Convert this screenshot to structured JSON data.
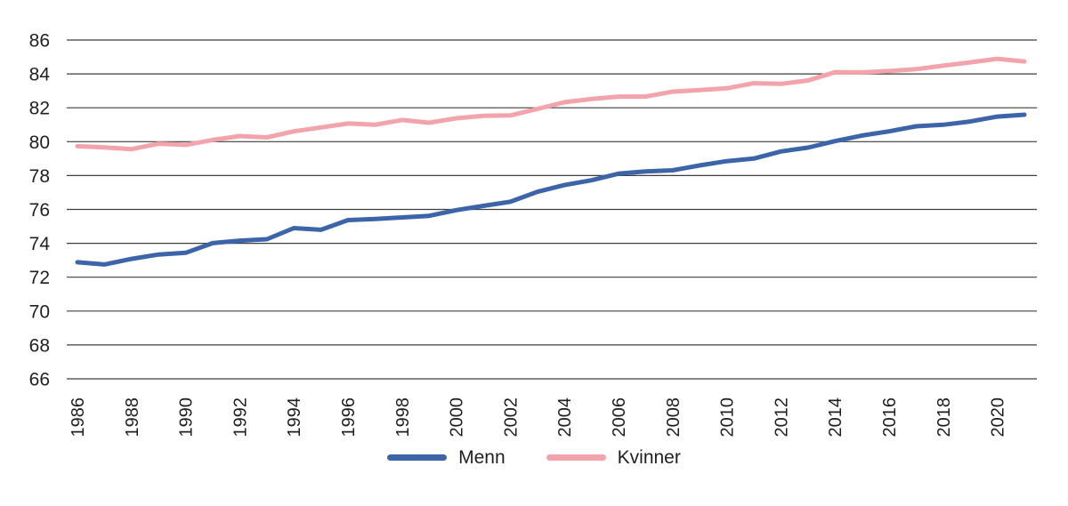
{
  "chart_data": {
    "type": "line",
    "title": "",
    "xlabel": "",
    "ylabel": "",
    "x": [
      1986,
      1987,
      1988,
      1989,
      1990,
      1991,
      1992,
      1993,
      1994,
      1995,
      1996,
      1997,
      1998,
      1999,
      2000,
      2001,
      2002,
      2003,
      2004,
      2005,
      2006,
      2007,
      2008,
      2009,
      2010,
      2011,
      2012,
      2013,
      2014,
      2015,
      2016,
      2017,
      2018,
      2019,
      2020,
      2021
    ],
    "series": [
      {
        "name": "Menn",
        "color": "#3c64a8",
        "values": [
          72.88,
          72.75,
          73.08,
          73.34,
          73.44,
          74.01,
          74.16,
          74.24,
          74.9,
          74.8,
          75.37,
          75.44,
          75.53,
          75.62,
          75.96,
          76.21,
          76.45,
          77.04,
          77.44,
          77.72,
          78.11,
          78.24,
          78.31,
          78.6,
          78.85,
          79.0,
          79.42,
          79.65,
          80.03,
          80.36,
          80.61,
          80.91,
          81.0,
          81.19,
          81.48,
          81.59
        ]
      },
      {
        "name": "Kvinner",
        "color": "#f3a3ab",
        "values": [
          79.73,
          79.66,
          79.56,
          79.88,
          79.81,
          80.1,
          80.33,
          80.25,
          80.61,
          80.84,
          81.07,
          81.0,
          81.28,
          81.12,
          81.38,
          81.53,
          81.55,
          81.93,
          82.33,
          82.52,
          82.66,
          82.66,
          82.95,
          83.05,
          83.15,
          83.45,
          83.41,
          83.61,
          84.1,
          84.09,
          84.17,
          84.28,
          84.49,
          84.68,
          84.89,
          84.73
        ]
      }
    ],
    "ylim": [
      66,
      86
    ],
    "y_ticks": [
      66,
      68,
      70,
      72,
      74,
      76,
      78,
      80,
      82,
      84,
      86
    ],
    "x_tick_years": [
      1986,
      1988,
      1990,
      1992,
      1994,
      1996,
      1998,
      2000,
      2002,
      2004,
      2006,
      2008,
      2010,
      2012,
      2014,
      2016,
      2018,
      2020
    ],
    "grid": "horizontal",
    "gridline_color": "#3d3d3d",
    "text_color": "#1f1f1f",
    "legend_position": "bottom"
  }
}
